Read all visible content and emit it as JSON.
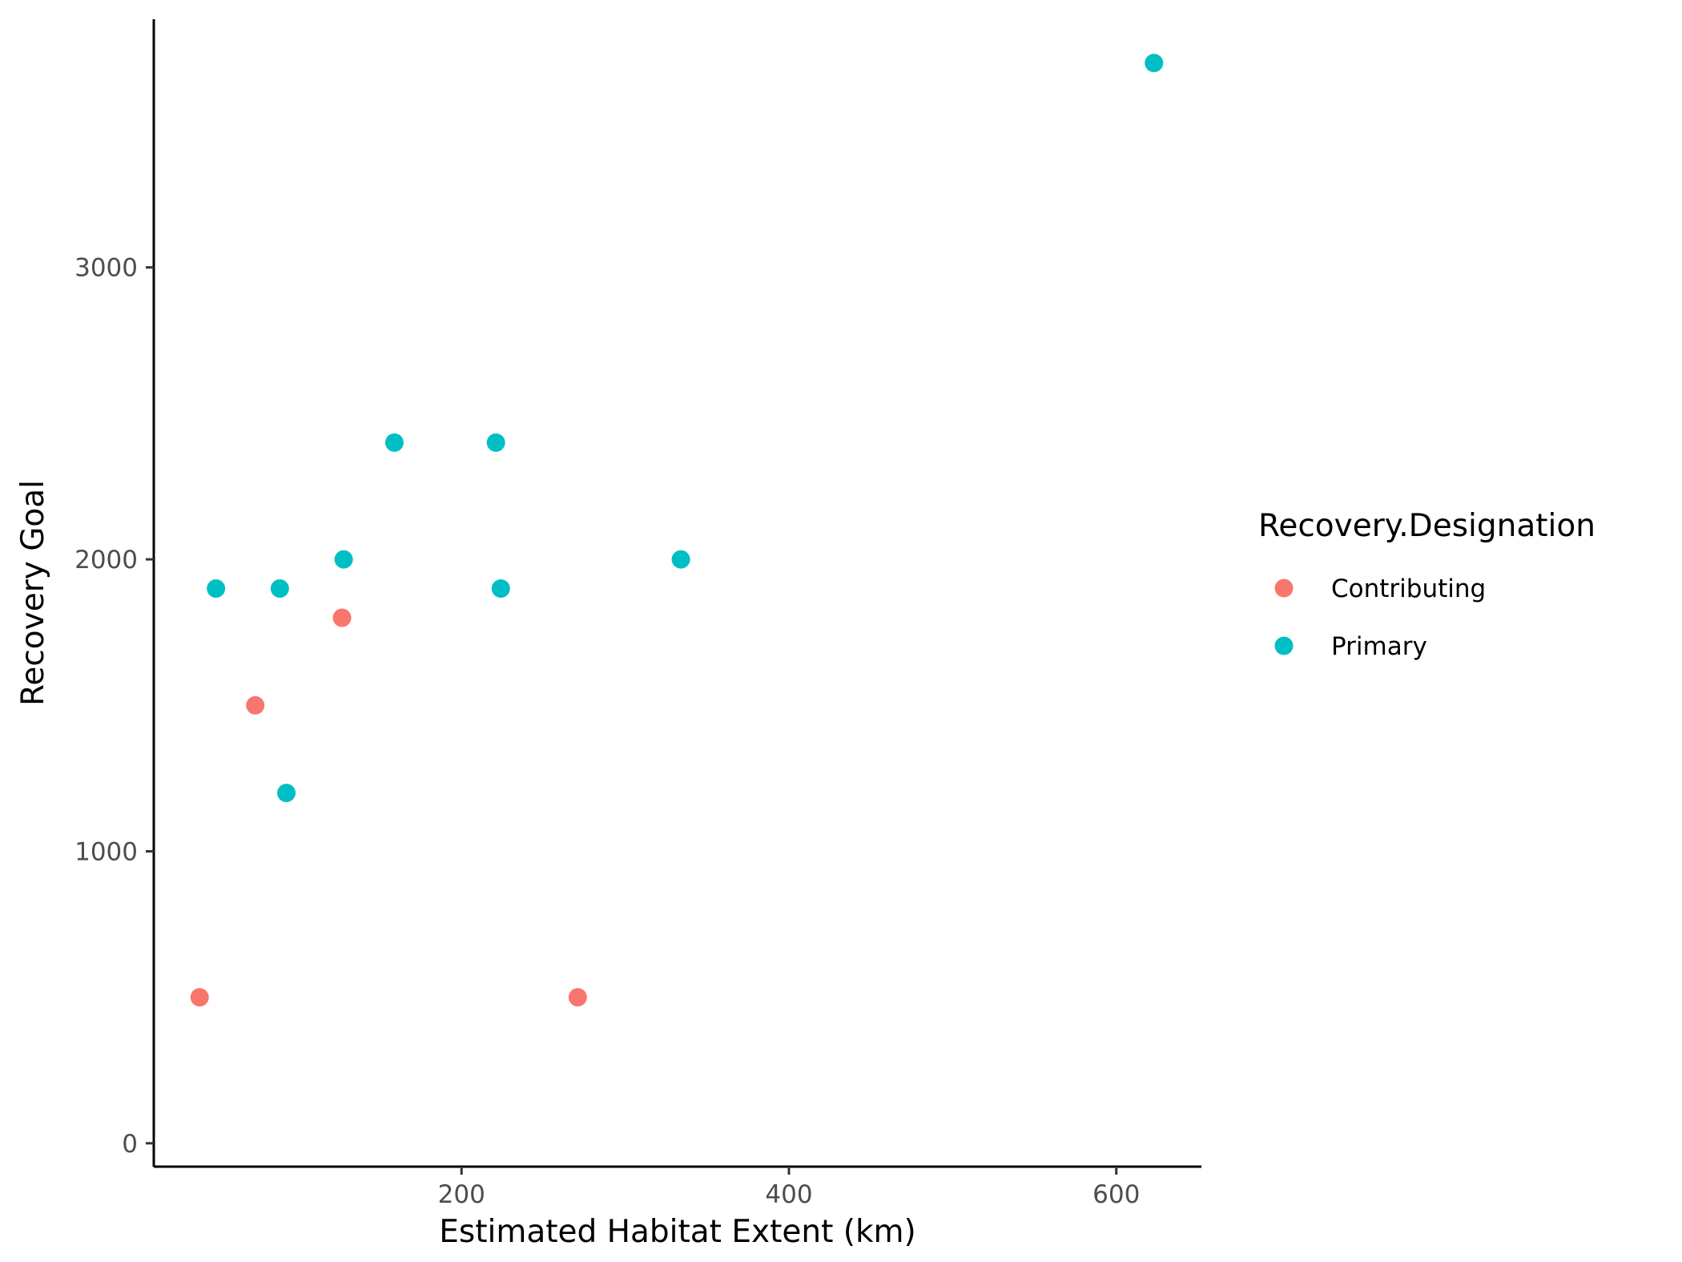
{
  "chart_data": {
    "type": "scatter",
    "title": "",
    "xlabel": "Estimated Habitat Extent (km)",
    "ylabel": "Recovery Goal",
    "xlim": [
      12,
      652
    ],
    "ylim": [
      -80,
      3850
    ],
    "x_ticks": [
      200,
      400,
      600
    ],
    "y_ticks": [
      0,
      1000,
      2000,
      3000
    ],
    "grid": false,
    "legend": {
      "title": "Recovery.Designation",
      "placement": "right"
    },
    "series": [
      {
        "name": "Contributing",
        "color": "#F8766D",
        "points": [
          {
            "x": 40,
            "y": 500
          },
          {
            "x": 74,
            "y": 1500
          },
          {
            "x": 127,
            "y": 1800
          },
          {
            "x": 271,
            "y": 500
          }
        ]
      },
      {
        "name": "Primary",
        "color": "#00BFC4",
        "points": [
          {
            "x": 50,
            "y": 1900
          },
          {
            "x": 89,
            "y": 1900
          },
          {
            "x": 93,
            "y": 1200
          },
          {
            "x": 128,
            "y": 2000
          },
          {
            "x": 159,
            "y": 2400
          },
          {
            "x": 221,
            "y": 2400
          },
          {
            "x": 224,
            "y": 1900
          },
          {
            "x": 334,
            "y": 2000
          },
          {
            "x": 623,
            "y": 3700
          }
        ]
      }
    ]
  }
}
